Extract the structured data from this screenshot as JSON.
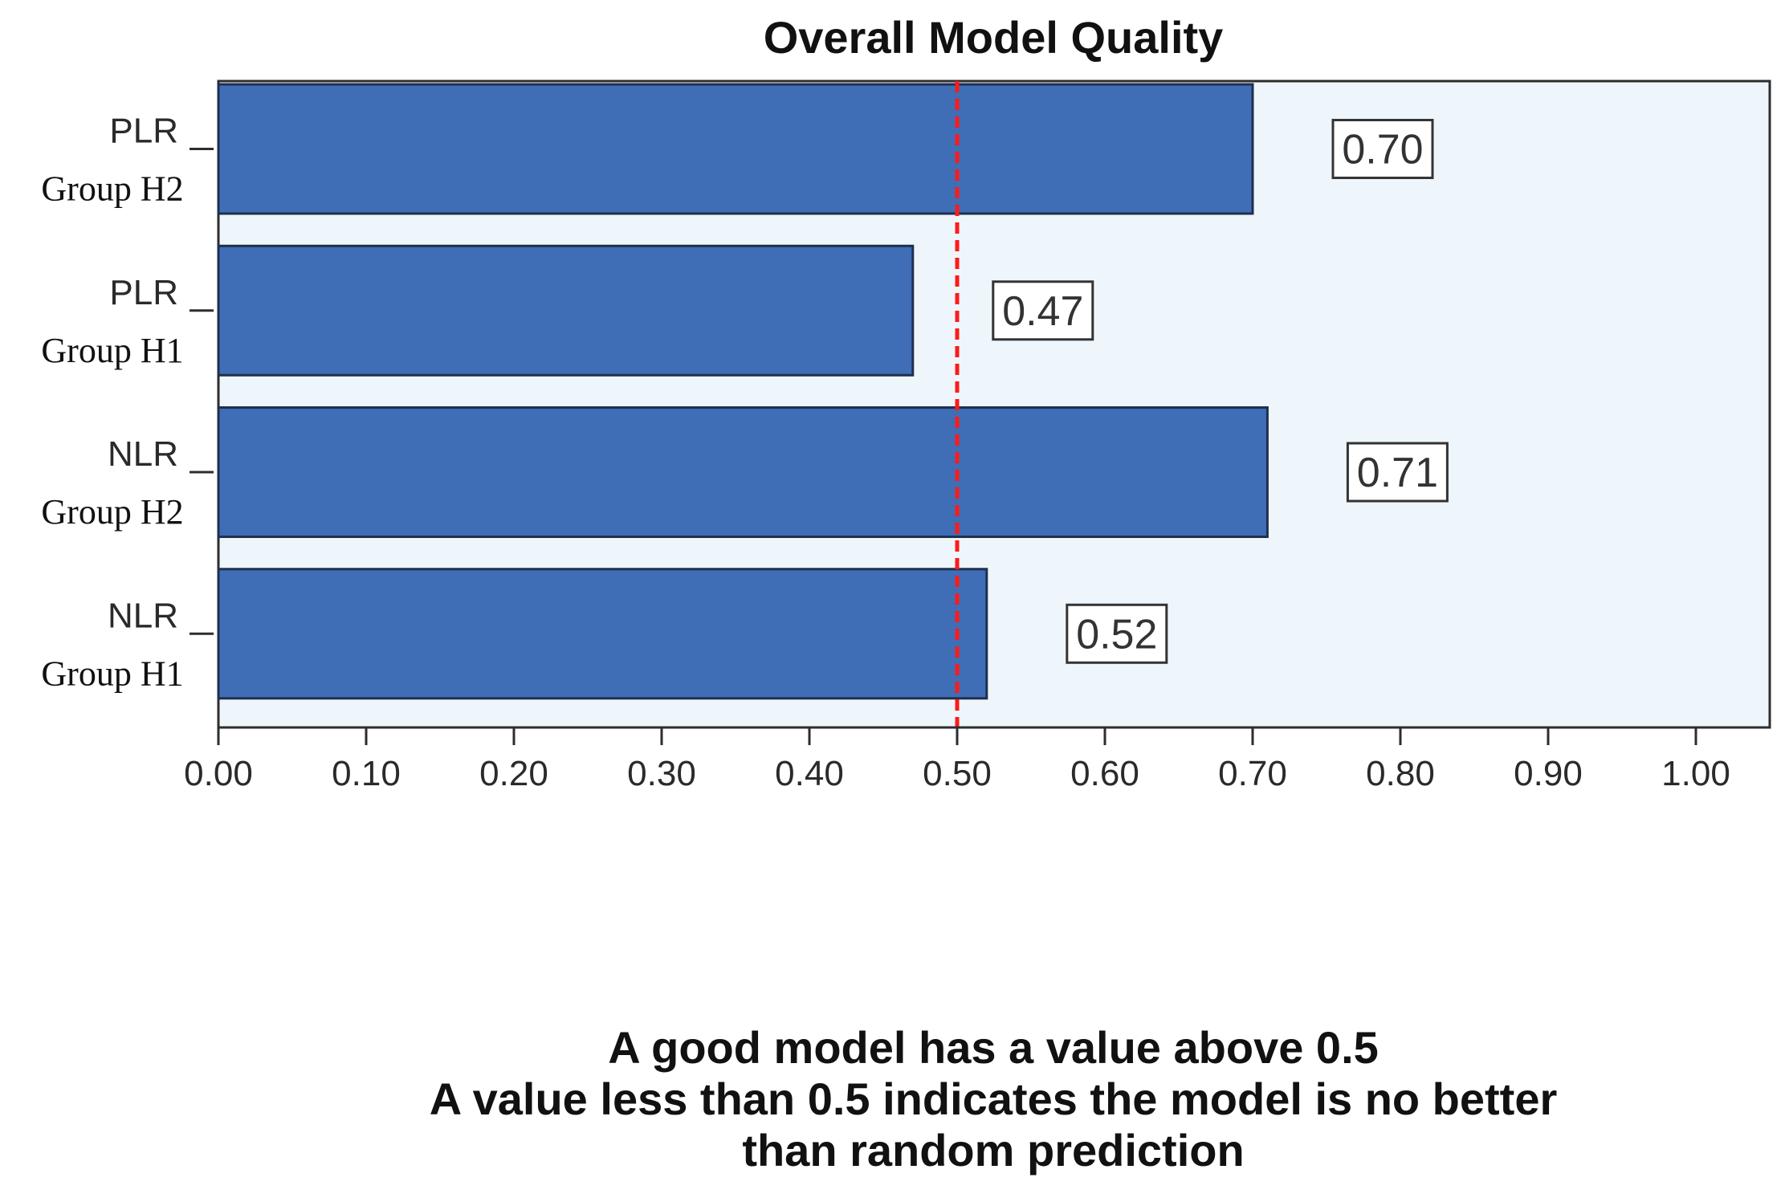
{
  "chart_data": {
    "type": "bar",
    "orientation": "horizontal",
    "title": "Overall Model Quality",
    "categories": [
      {
        "model": "PLR",
        "group": "Group H2"
      },
      {
        "model": "PLR",
        "group": "Group H1"
      },
      {
        "model": "NLR",
        "group": "Group H2"
      },
      {
        "model": "NLR",
        "group": "Group H1"
      }
    ],
    "values": [
      0.7,
      0.47,
      0.71,
      0.52
    ],
    "value_labels": [
      "0.70",
      "0.47",
      "0.71",
      "0.52"
    ],
    "xlim": [
      0,
      1.05
    ],
    "x_ticks": [
      "0.00",
      "0.10",
      "0.20",
      "0.30",
      "0.40",
      "0.50",
      "0.60",
      "0.70",
      "0.80",
      "0.90",
      "1.00"
    ],
    "reference_line": {
      "x": 0.5,
      "style": "dashed",
      "color": "#ff1a1a"
    },
    "grid": false,
    "colors": {
      "bar": "#3f6db6",
      "bar_border": "#1f2f4f",
      "plot_background": "#eef6fb"
    },
    "notes": [
      "A good model has a value above 0.5",
      "A value less than 0.5 indicates the model is no better",
      "than random prediction"
    ]
  }
}
